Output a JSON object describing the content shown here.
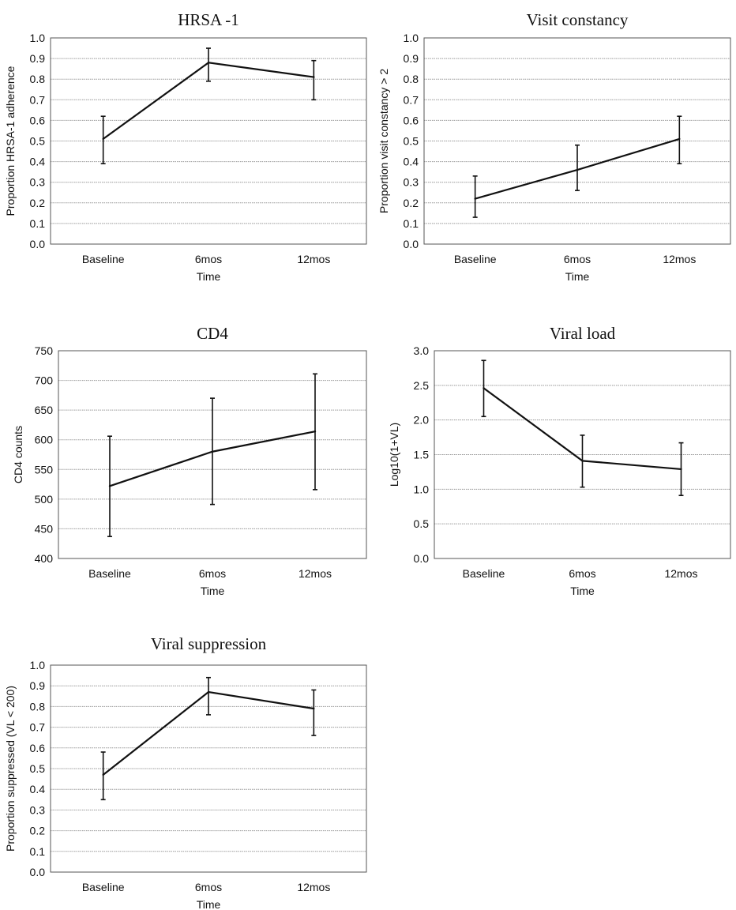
{
  "chart_data": [
    {
      "type": "line",
      "title": "HRSA -1",
      "xlabel": "Time",
      "ylabel": "Proportion HRSA-1 adherence",
      "categories": [
        "Baseline",
        "6mos",
        "12mos"
      ],
      "values": [
        0.51,
        0.88,
        0.81
      ],
      "error_low": [
        0.39,
        0.79,
        0.7
      ],
      "error_high": [
        0.62,
        0.95,
        0.89
      ],
      "ylim": [
        0,
        1
      ],
      "yticks": [
        "0.0",
        "0.1",
        "0.2",
        "0.3",
        "0.4",
        "0.5",
        "0.6",
        "0.7",
        "0.8",
        "0.9",
        "1.0"
      ],
      "grid": true
    },
    {
      "type": "line",
      "title": "Visit constancy",
      "xlabel": "Time",
      "ylabel": "Proportion visit constancy > 2",
      "categories": [
        "Baseline",
        "6mos",
        "12mos"
      ],
      "values": [
        0.22,
        0.36,
        0.51
      ],
      "error_low": [
        0.13,
        0.26,
        0.39
      ],
      "error_high": [
        0.33,
        0.48,
        0.62
      ],
      "ylim": [
        0,
        1
      ],
      "yticks": [
        "0.0",
        "0.1",
        "0.2",
        "0.3",
        "0.4",
        "0.5",
        "0.6",
        "0.7",
        "0.8",
        "0.9",
        "1.0"
      ],
      "grid": true
    },
    {
      "type": "line",
      "title": "CD4",
      "xlabel": "Time",
      "ylabel": "CD4 counts",
      "categories": [
        "Baseline",
        "6mos",
        "12mos"
      ],
      "values": [
        522,
        580,
        614
      ],
      "error_low": [
        437,
        491,
        516
      ],
      "error_high": [
        606,
        670,
        711
      ],
      "ylim": [
        400,
        750
      ],
      "yticks": [
        "400",
        "450",
        "500",
        "550",
        "600",
        "650",
        "700",
        "750"
      ],
      "grid": true
    },
    {
      "type": "line",
      "title": "Viral load",
      "xlabel": "Time",
      "ylabel": "Log10(1+VL)",
      "categories": [
        "Baseline",
        "6mos",
        "12mos"
      ],
      "values": [
        2.46,
        1.41,
        1.29
      ],
      "error_low": [
        2.05,
        1.03,
        0.91
      ],
      "error_high": [
        2.86,
        1.78,
        1.67
      ],
      "ylim": [
        0,
        3
      ],
      "yticks": [
        "0.0",
        "0.5",
        "1.0",
        "1.5",
        "2.0",
        "2.5",
        "3.0"
      ],
      "grid": true
    },
    {
      "type": "line",
      "title": "Viral suppression",
      "xlabel": "Time",
      "ylabel": "Proportion suppressed (VL < 200)",
      "categories": [
        "Baseline",
        "6mos",
        "12mos"
      ],
      "values": [
        0.47,
        0.87,
        0.79
      ],
      "error_low": [
        0.35,
        0.76,
        0.66
      ],
      "error_high": [
        0.58,
        0.94,
        0.88
      ],
      "ylim": [
        0,
        1
      ],
      "yticks": [
        "0.0",
        "0.1",
        "0.2",
        "0.3",
        "0.4",
        "0.5",
        "0.6",
        "0.7",
        "0.8",
        "0.9",
        "1.0"
      ],
      "grid": true
    }
  ]
}
